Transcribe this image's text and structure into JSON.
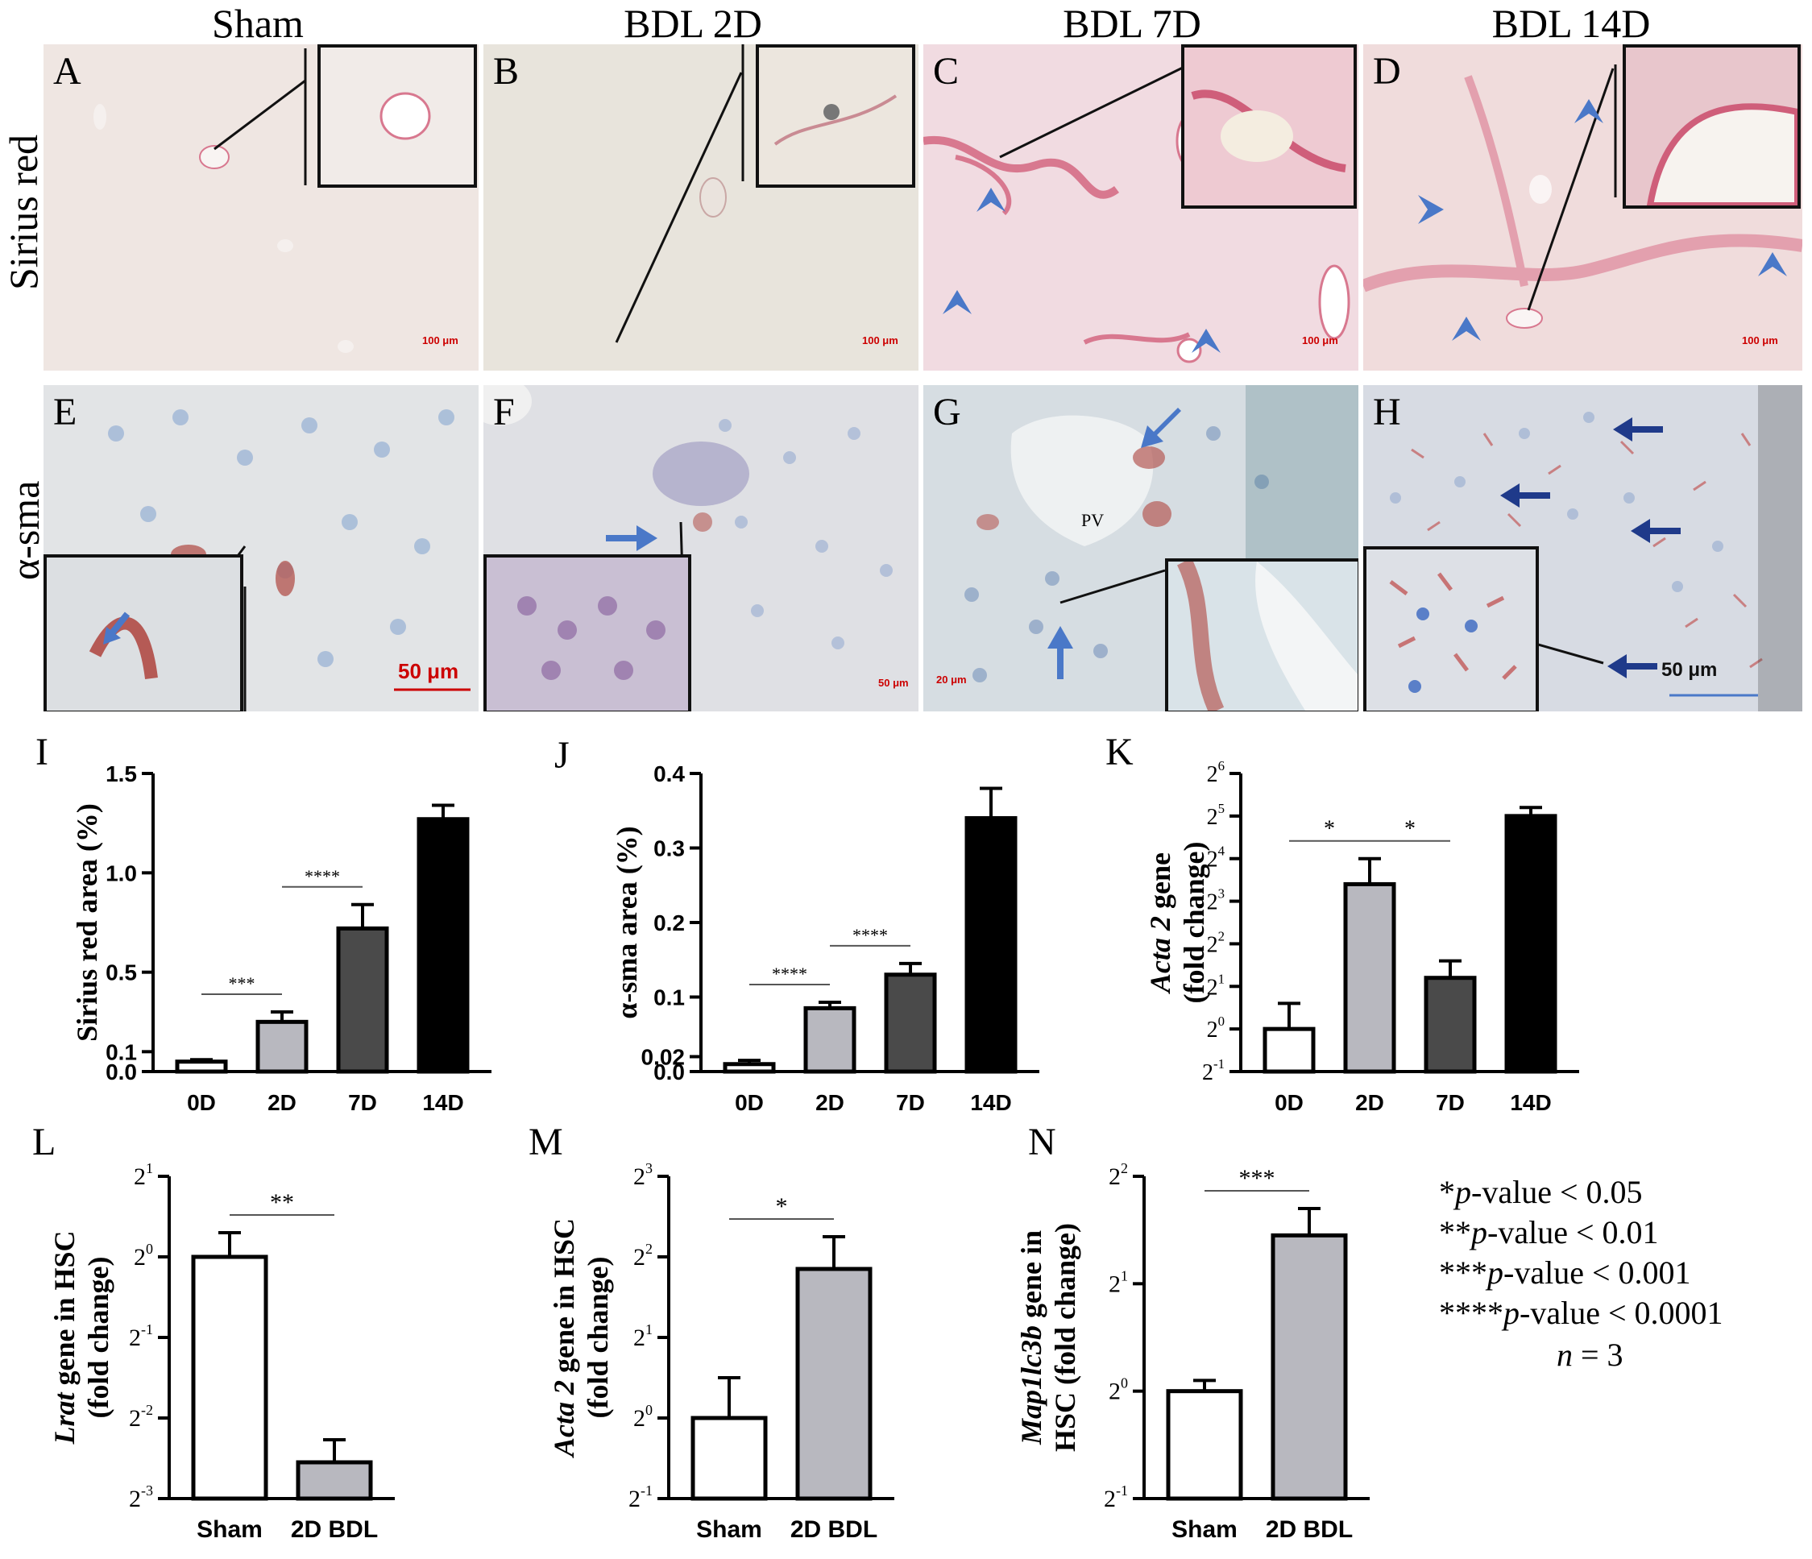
{
  "columns": [
    "Sham",
    "BDL 2D",
    "BDL 7D",
    "BDL 14D"
  ],
  "rows": [
    "Sirius red",
    "α-sma"
  ],
  "micro_panels": [
    {
      "letter": "A",
      "scale": "100 μm"
    },
    {
      "letter": "B",
      "scale": "100 μm"
    },
    {
      "letter": "C",
      "scale": "100 μm"
    },
    {
      "letter": "D",
      "scale": "100 μm"
    },
    {
      "letter": "E",
      "scale": "50 μm"
    },
    {
      "letter": "F",
      "scale": "50 μm"
    },
    {
      "letter": "G",
      "scale": "20 μm",
      "label": "PV"
    },
    {
      "letter": "H",
      "scale": "50 μm"
    }
  ],
  "colors": {
    "sirius_bg": "#efe6e2",
    "sirius_stain": "#d8788f",
    "sma_bg": "#dfe6ee",
    "sma_stain": "#b55a55",
    "arrow_blue": "#4a78c8",
    "arrow_navy": "#1f3a8a",
    "bar_white": "#ffffff",
    "bar_lightgray": "#b8b8bf",
    "bar_darkgray": "#4a4a4a",
    "bar_black": "#000000"
  },
  "chart_data": [
    {
      "panel": "I",
      "type": "bar",
      "ylabel": "Sirius red area (%)",
      "categories": [
        "0D",
        "2D",
        "7D",
        "14D"
      ],
      "values": [
        0.05,
        0.25,
        0.72,
        1.27
      ],
      "errors": [
        0.01,
        0.05,
        0.12,
        0.07
      ],
      "yticks": [
        "0.0",
        "0.1",
        "0.5",
        "1.0",
        "1.5"
      ],
      "ytick_values": [
        0,
        0.1,
        0.5,
        1.0,
        1.5
      ],
      "ylim": [
        0,
        1.5
      ],
      "significance": [
        {
          "from": 0,
          "to": 1,
          "label": "***"
        },
        {
          "from": 1,
          "to": 2,
          "label": "****"
        }
      ],
      "colors": [
        "#ffffff",
        "#b8b8bf",
        "#4a4a4a",
        "#000000"
      ]
    },
    {
      "panel": "J",
      "type": "bar",
      "ylabel": "α-sma area (%)",
      "categories": [
        "0D",
        "2D",
        "7D",
        "14D"
      ],
      "values": [
        0.01,
        0.085,
        0.13,
        0.34
      ],
      "errors": [
        0.005,
        0.008,
        0.015,
        0.04
      ],
      "yticks": [
        "0.0",
        "0.02",
        "0.1",
        "0.2",
        "0.3",
        "0.4"
      ],
      "ytick_values": [
        0,
        0.02,
        0.1,
        0.2,
        0.3,
        0.4
      ],
      "ylim": [
        0,
        0.4
      ],
      "significance": [
        {
          "from": 0,
          "to": 1,
          "label": "****"
        },
        {
          "from": 1,
          "to": 2,
          "label": "****"
        }
      ],
      "colors": [
        "#ffffff",
        "#b8b8bf",
        "#4a4a4a",
        "#000000"
      ]
    },
    {
      "panel": "K",
      "type": "bar",
      "log2": true,
      "ylabel_italic": "Acta 2",
      "ylabel_rest": " gene",
      "ylabel2": "(fold change)",
      "categories": [
        "0D",
        "2D",
        "7D",
        "14D"
      ],
      "values": [
        0,
        3.4,
        1.2,
        5.0
      ],
      "errors": [
        0.6,
        0.6,
        0.4,
        0.2
      ],
      "ytick_exps": [
        "-1",
        "0",
        "1",
        "2",
        "3",
        "4",
        "5",
        "6"
      ],
      "ytick_values": [
        -1,
        0,
        1,
        2,
        3,
        4,
        5,
        6
      ],
      "ylim": [
        -1,
        6
      ],
      "significance": [
        {
          "from": 0,
          "to": 1,
          "label": "*"
        },
        {
          "from": 1,
          "to": 2,
          "label": "*"
        }
      ],
      "colors": [
        "#ffffff",
        "#b8b8bf",
        "#4a4a4a",
        "#000000"
      ]
    },
    {
      "panel": "L",
      "type": "bar",
      "log2": true,
      "ylabel_italic": "Lrat",
      "ylabel_rest": " gene in HSC",
      "ylabel2": "(fold change)",
      "categories": [
        "Sham",
        "2D BDL"
      ],
      "values": [
        0,
        -2.55
      ],
      "errors": [
        0.3,
        0.28
      ],
      "ytick_exps": [
        "-3",
        "-2",
        "-1",
        "0",
        "1"
      ],
      "ytick_values": [
        -3,
        -2,
        -1,
        0,
        1
      ],
      "ylim": [
        -3,
        1
      ],
      "significance": [
        {
          "from": 0,
          "to": 1,
          "label": "**"
        }
      ],
      "colors": [
        "#ffffff",
        "#b8b8bf"
      ]
    },
    {
      "panel": "M",
      "type": "bar",
      "log2": true,
      "ylabel_italic": "Acta 2",
      "ylabel_rest": " gene in HSC",
      "ylabel2": "(fold change)",
      "categories": [
        "Sham",
        "2D BDL"
      ],
      "values": [
        0,
        1.85
      ],
      "errors": [
        0.5,
        0.4
      ],
      "ytick_exps": [
        "-1",
        "0",
        "1",
        "2",
        "3"
      ],
      "ytick_values": [
        -1,
        0,
        1,
        2,
        3
      ],
      "ylim": [
        -1,
        3
      ],
      "significance": [
        {
          "from": 0,
          "to": 1,
          "label": "*"
        }
      ],
      "colors": [
        "#ffffff",
        "#b8b8bf"
      ]
    },
    {
      "panel": "N",
      "type": "bar",
      "log2": true,
      "ylabel_italic": "Map1lc3b",
      "ylabel_rest": " gene in",
      "ylabel2": "HSC (fold change)",
      "categories": [
        "Sham",
        "2D BDL"
      ],
      "values": [
        0,
        1.45
      ],
      "errors": [
        0.1,
        0.25
      ],
      "ytick_exps": [
        "-1",
        "0",
        "1",
        "2"
      ],
      "ytick_values": [
        -1,
        0,
        1,
        2
      ],
      "ylim": [
        -1,
        2
      ],
      "significance": [
        {
          "from": 0,
          "to": 1,
          "label": "***"
        }
      ],
      "colors": [
        "#ffffff",
        "#b8b8bf"
      ]
    }
  ],
  "legend": [
    {
      "stars": "*",
      "italic": "p",
      "rest": "-value < 0.05"
    },
    {
      "stars": "**",
      "italic": "p",
      "rest": "-value < 0.01"
    },
    {
      "stars": "***",
      "italic": "p",
      "rest": "-value < 0.001"
    },
    {
      "stars": "****",
      "italic": "p",
      "rest": "-value < 0.0001"
    },
    {
      "stars": "",
      "italic": "n",
      "rest": " = 3"
    }
  ]
}
